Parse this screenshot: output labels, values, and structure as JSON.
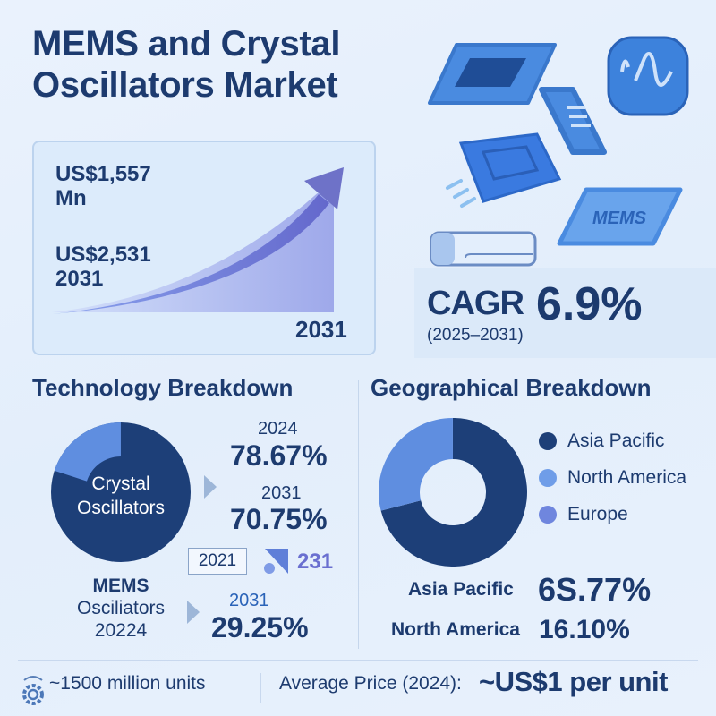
{
  "title": {
    "line1": "MEMS and Crystal",
    "line2": "Oscillators Market"
  },
  "colors": {
    "dark": "#1d3f78",
    "light": "#5f8ee0",
    "europe": "#6f86de",
    "accent_arrow": "#6a6fd0"
  },
  "growth": {
    "value_start": "US$1,557",
    "value_start_unit": "Mn",
    "value_end": "US$2,531",
    "value_end_year": "2031",
    "axis_year": "2031"
  },
  "illustrations": {
    "mems_chip_label": "MEMS"
  },
  "cagr": {
    "label": "CAGR",
    "value": "6.9%",
    "period": "(2025–2031)"
  },
  "technology": {
    "heading": "Technology Breakdown",
    "pie_label_line1": "Crystal",
    "pie_label_line2": "Oscillators",
    "crystal_share_pct": 80,
    "year_a": "2024",
    "value_a": "78.67%",
    "year_b": "2031",
    "value_b": "70.75%",
    "boxed_year": "2021",
    "glitch_text": "231",
    "mems_line1": "MEMS",
    "mems_line2": "Osciliators",
    "mems_year": "20224",
    "mems_year_b": "2031",
    "mems_value": "29.25%"
  },
  "geography": {
    "heading": "Geographical Breakdown",
    "dark_share_pct": 71,
    "legend": [
      {
        "label": "Asia Pacific",
        "color": "#1d3f78"
      },
      {
        "label": "North America",
        "color": "#5f8ee0"
      },
      {
        "label": "Europe",
        "color": "#6f86de"
      }
    ],
    "stats": [
      {
        "label": "Asia Pacific",
        "value": "6S.77%"
      },
      {
        "label": "North America",
        "value": "16.10%"
      }
    ]
  },
  "footer": {
    "units": "~1500 million units",
    "price_label": "Average Price (2024):",
    "price_value": "~US$1 per unit"
  }
}
